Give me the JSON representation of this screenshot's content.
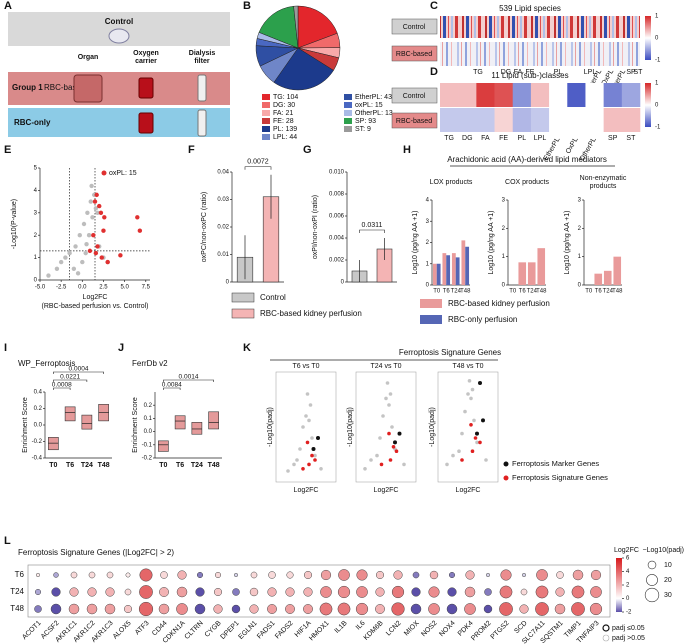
{
  "panel_labels": [
    "A",
    "B",
    "C",
    "D",
    "E",
    "F",
    "G",
    "H",
    "I",
    "J",
    "K",
    "L"
  ],
  "a": {
    "control": "Control",
    "columns": [
      [
        "Organ"
      ],
      [
        "Oxygen",
        "carrier"
      ],
      [
        "Dialysis",
        "filter"
      ]
    ],
    "group": "Group 1",
    "rbc_based": "RBC-based",
    "rbc_only": "RBC-only"
  },
  "b": {
    "type": "pie",
    "categories": [
      "TG",
      "DG",
      "FA",
      "FE",
      "PL",
      "LPL",
      "EtherPL",
      "oxPL",
      "OtherPL",
      "SP",
      "ST"
    ],
    "values": [
      104,
      30,
      21,
      28,
      139,
      44,
      43,
      15,
      13,
      93,
      9
    ],
    "value_labels": [
      "TG: 104",
      "DG: 30",
      "FA: 21",
      "FE: 28",
      "PL: 139",
      "LPL: 44",
      "EtherPL: 43",
      "oxPL: 15",
      "OtherPL: 13",
      "SP: 93",
      "ST: 9"
    ],
    "colors": [
      "#e3262c",
      "#f06a6a",
      "#f8a9a9",
      "#c93a3a",
      "#1c3a8c",
      "#6f86c8",
      "#2f4fa3",
      "#4a68c2",
      "#a9bbe6",
      "#2ca04c",
      "#9a9a9a"
    ]
  },
  "c": {
    "title": "539 Lipid species",
    "rows": [
      "Control",
      "RBC-based"
    ],
    "columns": [
      "TG",
      "DG",
      "FA",
      "FE",
      "PL",
      "LPL",
      "EtherPL",
      "OxPL",
      "OtherPL",
      "SP",
      "ST"
    ],
    "colorbar_ticks": [
      1,
      0,
      -1
    ]
  },
  "d": {
    "type": "heatmap",
    "title": "11 Lipid (sub-)classes",
    "rows": [
      "Control",
      "RBC-based"
    ],
    "columns": [
      "TG",
      "DG",
      "FA",
      "FE",
      "PL",
      "LPL",
      "EtherPL",
      "OxPL",
      "OtherPL",
      "SP",
      "ST"
    ],
    "values": [
      [
        0.3,
        0.3,
        0.9,
        0.8,
        -0.6,
        0.3,
        0,
        -0.9,
        0,
        -0.7,
        -0.5
      ],
      [
        -0.3,
        -0.3,
        -0.3,
        0.2,
        -0.4,
        -0.3,
        0,
        0,
        0,
        0.3,
        0.3
      ]
    ],
    "clim": [
      -1,
      1
    ],
    "colorbar_ticks": [
      1,
      0,
      -1
    ]
  },
  "e": {
    "type": "scatter",
    "ylabel": "-Log10(P-value)",
    "xlabel": "Log2FC",
    "xlabel2": "(RBC-based perfusion vs. Control)",
    "xlim": [
      -5,
      8
    ],
    "ylim": [
      0,
      5
    ],
    "xticks": [
      {
        "value": -5,
        "label": "-5.0"
      },
      {
        "value": -2.5,
        "label": "-2.5"
      },
      {
        "value": 0,
        "label": "0.0"
      },
      {
        "value": 2.5,
        "label": "2.5"
      },
      {
        "value": 5,
        "label": "5.0"
      },
      {
        "value": 7.5,
        "label": "7.5"
      }
    ],
    "yticks": [
      0,
      1,
      2,
      3,
      4,
      5
    ],
    "cutoffs": {
      "x": [
        -1.5,
        1.5
      ],
      "y": 1.3
    },
    "series": [
      {
        "color": "#bdbdbd",
        "x": [
          -3,
          -2.5,
          -2,
          -1.5,
          -1,
          -0.8,
          -0.5,
          -0.3,
          0,
          0.2,
          0.4,
          0.6,
          0.8,
          1,
          1.2,
          1.4,
          1.6,
          1.8,
          2,
          2.5,
          3,
          -4,
          0.5,
          1.1
        ],
        "y": [
          0.5,
          0.8,
          1,
          1.2,
          0.5,
          1.5,
          0.3,
          2,
          0.8,
          2.5,
          1.2,
          3,
          2,
          3.5,
          2.8,
          3.8,
          3.2,
          3,
          1.5,
          1,
          0.8,
          0.2,
          1.6,
          4.2
        ]
      },
      {
        "name": "oxPL: 15",
        "color": "#e03030",
        "x": [
          1.5,
          1.7,
          2,
          2.2,
          2.5,
          1.3,
          6.5,
          6.8,
          3,
          1.8,
          0.9,
          1.6,
          2.3,
          4.5,
          2.6
        ],
        "y": [
          3.5,
          3.8,
          3.3,
          3,
          2.2,
          2,
          2.8,
          2.2,
          0.8,
          1.5,
          1.3,
          1.2,
          1,
          1.1,
          2.8
        ]
      }
    ]
  },
  "f": {
    "type": "bar",
    "ylabel": "oxPC/non-oxPC (ratio)",
    "ylim": [
      0,
      0.04
    ],
    "yticks": [
      0,
      0.01,
      0.02,
      0.03,
      0.04
    ],
    "values": [
      0.009,
      0.031
    ],
    "errors": [
      0.008,
      0.008
    ],
    "colors": [
      "#c8c8c8",
      "#f4b4b4"
    ],
    "pvalue": "0.0072"
  },
  "g": {
    "type": "bar",
    "ylabel": "oxPI/non-oxPI (ratio)",
    "ylim": [
      0,
      0.01
    ],
    "yticks": [
      0,
      0.002,
      0.004,
      0.006,
      0.008,
      {
        "value": 0.01,
        "label": "0.010"
      }
    ],
    "values": [
      0.001,
      0.003
    ],
    "errors": [
      0.001,
      0.001
    ],
    "colors": [
      "#c8c8c8",
      "#f4b4b4"
    ],
    "pvalue": "0.0311"
  },
  "fg_legend": [
    "Control",
    "RBC-based kidney perfusion"
  ],
  "h": {
    "type": "bar",
    "title": "Arachidonic acid (AA)-derived lipid mediators",
    "ylabel": "Log10 (pg/ng AA +1)",
    "categories": [
      "T0",
      "T6",
      "T24",
      "T48"
    ],
    "plots": [
      {
        "title": [
          "LOX products"
        ],
        "ylim": [
          0,
          4
        ],
        "yticks": [
          0,
          1,
          2,
          3,
          4
        ],
        "series": [
          {
            "values": [
              1.0,
              1.5,
              1.5,
              2.1
            ]
          },
          {
            "values": [
              1.0,
              1.4,
              1.3,
              1.8
            ]
          }
        ]
      },
      {
        "title": [
          "COX products"
        ],
        "ylim": [
          0,
          3
        ],
        "yticks": [
          0,
          1,
          2,
          3
        ],
        "series": [
          {
            "values": [
              0,
              0.8,
              0.8,
              1.3
            ]
          }
        ]
      },
      {
        "title": [
          "Non-enzymatic",
          "products"
        ],
        "ylim": [
          0,
          3
        ],
        "yticks": [
          0,
          1,
          2,
          3
        ],
        "series": [
          {
            "values": [
              0,
              0.4,
              0.5,
              1.0
            ]
          }
        ]
      }
    ],
    "legend": [
      {
        "name": "RBC-based kidney perfusion",
        "color": "#e99a9a"
      },
      {
        "name": "RBC-only perfusion",
        "color": "#5566b5"
      }
    ]
  },
  "i": {
    "type": "box",
    "title": "WP_Ferroptosis",
    "ylabel": "Enrichment Score",
    "categories": [
      "T0",
      "T6",
      "T24",
      "T48"
    ],
    "ylim": [
      -0.4,
      0.4
    ],
    "yticks": [
      {
        "value": -0.4,
        "label": "-0.4"
      },
      {
        "value": -0.2,
        "label": "-0.2"
      },
      {
        "value": 0,
        "label": "0.0"
      },
      {
        "value": 0.2,
        "label": "0.2"
      },
      {
        "value": 0.4,
        "label": "0.4"
      }
    ],
    "q1": [
      -0.3,
      0.05,
      -0.05,
      0.05
    ],
    "median": [
      -0.22,
      0.15,
      0.02,
      0.15
    ],
    "q3": [
      -0.15,
      0.22,
      0.12,
      0.25
    ],
    "brackets": [
      {
        "to": 1,
        "label": "0.0008"
      },
      {
        "to": 2,
        "label": "0.0221"
      },
      {
        "to": 3,
        "label": "0.0004"
      }
    ]
  },
  "j": {
    "type": "box",
    "title": "FerrDb v2",
    "ylabel": "Enrichment Score",
    "categories": [
      "T0",
      "T6",
      "T24",
      "T48"
    ],
    "ylim": [
      -0.2,
      0.3
    ],
    "yticks": [
      {
        "value": -0.2,
        "label": "-0.2"
      },
      {
        "value": -0.1,
        "label": "-0.1"
      },
      {
        "value": 0,
        "label": "0.0"
      },
      {
        "value": 0.1,
        "label": "0.1"
      },
      {
        "value": 0.2,
        "label": "0.2"
      }
    ],
    "q1": [
      -0.15,
      0.02,
      -0.02,
      0.02
    ],
    "median": [
      -0.1,
      0.08,
      0.02,
      0.07
    ],
    "q3": [
      -0.07,
      0.12,
      0.07,
      0.15
    ],
    "brackets": [
      {
        "to": 1,
        "label": "0.0084"
      },
      {
        "to": 3,
        "label": "0.0014"
      }
    ]
  },
  "k": {
    "type": "scatter",
    "title": "Ferroptosis Signature Genes",
    "xlabel": "Log2FC",
    "ylabel": "-Log10(padj)",
    "xlim": [
      -10,
      10
    ],
    "ylim": [
      0,
      50
    ],
    "legend": [
      {
        "name": "Ferroptosis Marker Genes",
        "color": "#111111"
      },
      {
        "name": "Ferroptosis Signature Genes",
        "color": "#e02020"
      }
    ],
    "plots": [
      {
        "title": "T6 vs T0",
        "gray": {
          "x": [
            -6,
            -4,
            -2,
            -1,
            0,
            1,
            2,
            3,
            5,
            -3,
            0.5,
            1.5
          ],
          "y": [
            5,
            8,
            15,
            25,
            30,
            28,
            20,
            12,
            6,
            10,
            40,
            35
          ]
        },
        "red": {
          "x": [
            1,
            2,
            0.5,
            -1,
            3
          ],
          "y": [
            8,
            12,
            18,
            6,
            10
          ]
        },
        "black": {
          "x": [
            2.5,
            4
          ],
          "y": [
            15,
            20
          ]
        }
      },
      {
        "title": "T24 vs T0",
        "gray": {
          "x": [
            -7,
            -5,
            -2,
            -1,
            0,
            1,
            2,
            3,
            6,
            -3,
            0.5,
            1.5
          ],
          "y": [
            6,
            10,
            20,
            30,
            38,
            35,
            25,
            15,
            8,
            12,
            45,
            40
          ]
        },
        "red": {
          "x": [
            1.5,
            2.5,
            1,
            -1.5,
            3.5
          ],
          "y": [
            10,
            16,
            22,
            8,
            14
          ]
        },
        "black": {
          "x": [
            3,
            4.5
          ],
          "y": [
            18,
            22
          ]
        }
      },
      {
        "title": "T48 vs T0",
        "gray": {
          "x": [
            -7,
            -5,
            -2,
            -1,
            0,
            1,
            2,
            3,
            6,
            -3,
            0.5,
            1.5
          ],
          "y": [
            8,
            12,
            22,
            32,
            40,
            38,
            28,
            18,
            10,
            14,
            46,
            42
          ]
        },
        "red": {
          "x": [
            1.5,
            2.5,
            1,
            -2,
            4
          ],
          "y": [
            14,
            20,
            26,
            10,
            18
          ]
        },
        "black": {
          "x": [
            3,
            5,
            4
          ],
          "y": [
            22,
            28,
            45
          ]
        }
      }
    ]
  },
  "l": {
    "type": "dot",
    "title": "Ferroptosis Signature Genes (|Log2FC| > 2)",
    "rows": [
      "T6",
      "T24",
      "T48"
    ],
    "genes": [
      "ACOT1",
      "ACSF2",
      "AKR1C1",
      "AKR1C2",
      "AKR1C3",
      "ALOX5",
      "ATF3",
      "CD44",
      "CDKN1A",
      "CLTRN",
      "CYGB",
      "DPEP1",
      "EGLN1",
      "FADS1",
      "FADS2",
      "HIF1A",
      "HMOX1",
      "IL1B",
      "IL6",
      "KDM6B",
      "LCN2",
      "MIOX",
      "NOS2",
      "NOX4",
      "PDK4",
      "PROM2",
      "PTGS2",
      "SCD",
      "SLC7A11",
      "SQSTM1",
      "TIMP1",
      "TNFAIP3"
    ],
    "values": [
      [
        0.5,
        -1,
        1,
        1,
        1,
        0.5,
        4,
        1,
        2,
        -1.5,
        1,
        -0.5,
        1,
        1,
        1,
        1.5,
        2.5,
        3,
        3,
        1.5,
        2,
        -1.5,
        2,
        -1.5,
        2,
        -0.5,
        3,
        -0.5,
        3,
        1,
        2.5,
        2.5
      ],
      [
        -1,
        -2.5,
        2,
        2,
        2,
        1,
        4,
        2,
        2.5,
        -2.5,
        1.5,
        -1.5,
        1.5,
        2,
        2,
        2,
        3,
        3,
        3,
        2,
        3.5,
        -2.5,
        3,
        -2.5,
        2.5,
        -1.5,
        3.5,
        1,
        3.5,
        2,
        3.5,
        3
      ],
      [
        -1.5,
        -3,
        2.5,
        2.5,
        2.5,
        1.5,
        4,
        2.5,
        3,
        -3,
        2,
        -2,
        2,
        2.5,
        2.5,
        2.5,
        3.5,
        3.5,
        3,
        2,
        4,
        -3,
        3,
        -3,
        3,
        -2,
        4,
        2,
        4,
        2.5,
        4,
        3
      ]
    ],
    "sizes": [
      [
        2,
        4,
        6,
        6,
        6,
        3,
        25,
        8,
        12,
        5,
        5,
        2,
        6,
        8,
        7,
        9,
        15,
        20,
        18,
        9,
        12,
        6,
        10,
        5,
        12,
        2,
        18,
        2,
        20,
        8,
        16,
        15
      ],
      [
        5,
        12,
        12,
        12,
        12,
        6,
        28,
        14,
        16,
        12,
        9,
        8,
        10,
        12,
        12,
        12,
        20,
        22,
        20,
        12,
        22,
        12,
        18,
        12,
        16,
        8,
        24,
        6,
        24,
        12,
        24,
        20
      ],
      [
        8,
        16,
        16,
        16,
        16,
        9,
        30,
        16,
        20,
        16,
        12,
        10,
        12,
        14,
        14,
        14,
        24,
        24,
        22,
        14,
        26,
        16,
        20,
        16,
        20,
        10,
        28,
        12,
        28,
        16,
        28,
        22
      ]
    ],
    "clim": [
      -2,
      6
    ],
    "colorbar_title": "Log2FC",
    "colorbar_ticks": [
      6,
      4,
      2,
      0,
      -2
    ],
    "size_title": "−Log10(padj)",
    "size_ticks": [
      10,
      20,
      30
    ],
    "sig_legend": [
      "padj ≤0.05",
      "padj >0.05"
    ]
  }
}
